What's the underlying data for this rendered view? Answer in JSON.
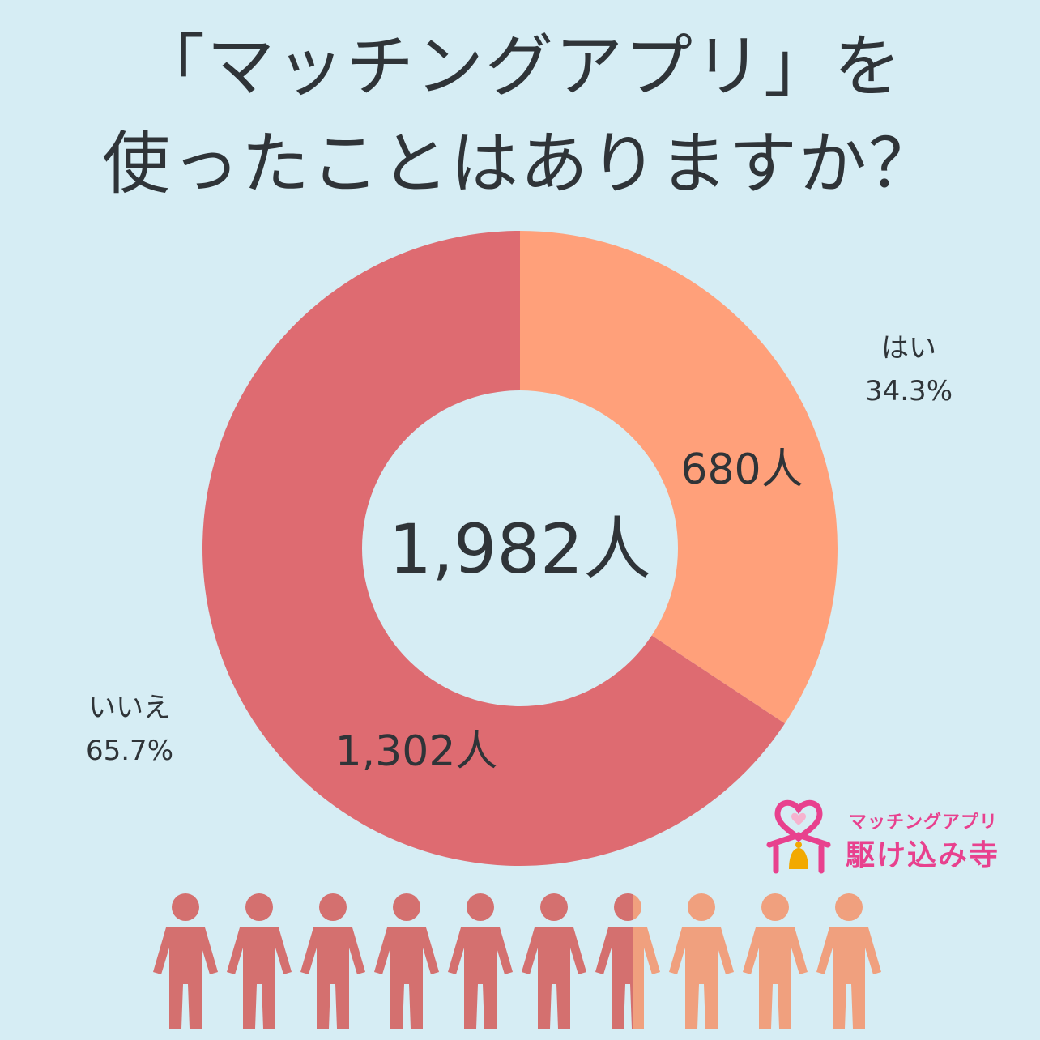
{
  "title": {
    "line1": "「マッチングアプリ」を",
    "line2": "使ったことはありますか？"
  },
  "chart_data": {
    "type": "donut",
    "total_label": "1,982人",
    "slices": [
      {
        "name": "はい",
        "percent_label": "34.3%",
        "percent": 34.3,
        "count": 680,
        "count_label": "680人",
        "color": "#ffa07a"
      },
      {
        "name": "いいえ",
        "percent_label": "65.7%",
        "percent": 65.7,
        "count": 1302,
        "count_label": "1,302人",
        "color": "#de6b71"
      }
    ],
    "people_icons": {
      "total": 10,
      "yes_share": 0.343,
      "no_color": "#d4706f",
      "yes_color": "#f0a07e"
    }
  },
  "logo": {
    "subtitle": "マッチングアプリ",
    "name": "駆け込み寺",
    "color": "#e8418e",
    "icon": "heart-temple-icon"
  }
}
